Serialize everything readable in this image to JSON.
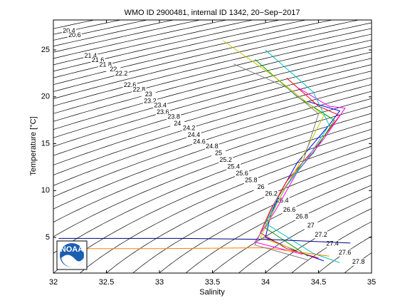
{
  "chart_data": {
    "type": "ts-diagram",
    "title": "WMO ID 2900481, internal ID 1342, 20−Sep−2017",
    "x_label": "Salinity",
    "y_label": "Temperature [°C]",
    "logo_text": "NOAA",
    "xlim": [
      32,
      35
    ],
    "ylim": [
      1.2,
      28.2
    ],
    "xticks": [
      32,
      32.5,
      33,
      33.5,
      34,
      34.5,
      35
    ],
    "yticks": [
      5,
      10,
      15,
      20,
      25
    ],
    "contour_levels": [
      20.2,
      20.4,
      20.6,
      20.8,
      21,
      21.2,
      21.4,
      21.6,
      21.8,
      22,
      22.2,
      22.4,
      22.6,
      22.8,
      23,
      23.2,
      23.4,
      23.6,
      23.8,
      24,
      24.2,
      24.4,
      24.6,
      24.8,
      25,
      25.2,
      25.4,
      25.6,
      25.8,
      26,
      26.2,
      26.4,
      26.6,
      26.8,
      27,
      27.2,
      27.4,
      27.6,
      27.8,
      28
    ],
    "series": [
      {
        "color": "#0000ff",
        "x": [
          34.4,
          34.7,
          34.6,
          34.3,
          34.15,
          34.05,
          34.0,
          34.3,
          34.55
        ],
        "values": [
          19.5,
          18.5,
          17.0,
          13.0,
          10.0,
          7.5,
          5.0,
          3.5,
          2.5
        ]
      },
      {
        "color": "#ff0000",
        "x": [
          34.2,
          34.5,
          34.7,
          34.5,
          34.2,
          34.05,
          33.95,
          34.2,
          34.5
        ],
        "values": [
          22.0,
          19.0,
          18.0,
          15.0,
          11.0,
          8.0,
          5.5,
          3.8,
          2.8
        ]
      },
      {
        "color": "#00a000",
        "x": [
          33.9,
          34.3,
          34.65,
          34.45,
          34.25,
          34.1,
          34.0,
          34.4
        ],
        "values": [
          24.0,
          20.0,
          17.5,
          14.0,
          11.5,
          8.5,
          6.0,
          3.0
        ]
      },
      {
        "color": "#ff00ff",
        "x": [
          34.3,
          34.6,
          34.75,
          34.55,
          34.3,
          34.1,
          33.9,
          34.35
        ],
        "values": [
          21.0,
          19.0,
          18.8,
          15.5,
          12.0,
          8.0,
          4.5,
          3.2
        ]
      },
      {
        "color": "#00c0c0",
        "x": [
          34.0,
          34.45,
          34.6,
          34.4,
          34.2,
          34.0,
          34.45,
          34.7
        ],
        "values": [
          25.0,
          20.5,
          17.0,
          13.5,
          10.5,
          6.5,
          3.3,
          2.3
        ]
      },
      {
        "color": "#c8c800",
        "x": [
          33.6,
          34.1,
          34.55,
          34.3,
          34.15,
          33.95,
          34.3
        ],
        "values": [
          26.0,
          22.0,
          18.0,
          12.5,
          9.5,
          5.0,
          3.6
        ]
      },
      {
        "color": "#ff8000",
        "x": [
          32.05,
          33.0,
          34.0,
          34.6
        ],
        "values": [
          3.8,
          3.8,
          3.9,
          3.0
        ]
      },
      {
        "color": "#000080",
        "x": [
          32.05,
          33.2,
          34.0,
          34.8
        ],
        "values": [
          4.9,
          4.9,
          4.8,
          4.4
        ]
      },
      {
        "color": "#808080",
        "x": [
          33.7,
          34.2,
          34.5,
          34.35,
          34.1,
          33.9,
          34.4
        ],
        "values": [
          23.5,
          21.0,
          18.2,
          13.0,
          9.0,
          4.2,
          2.6
        ]
      }
    ]
  }
}
